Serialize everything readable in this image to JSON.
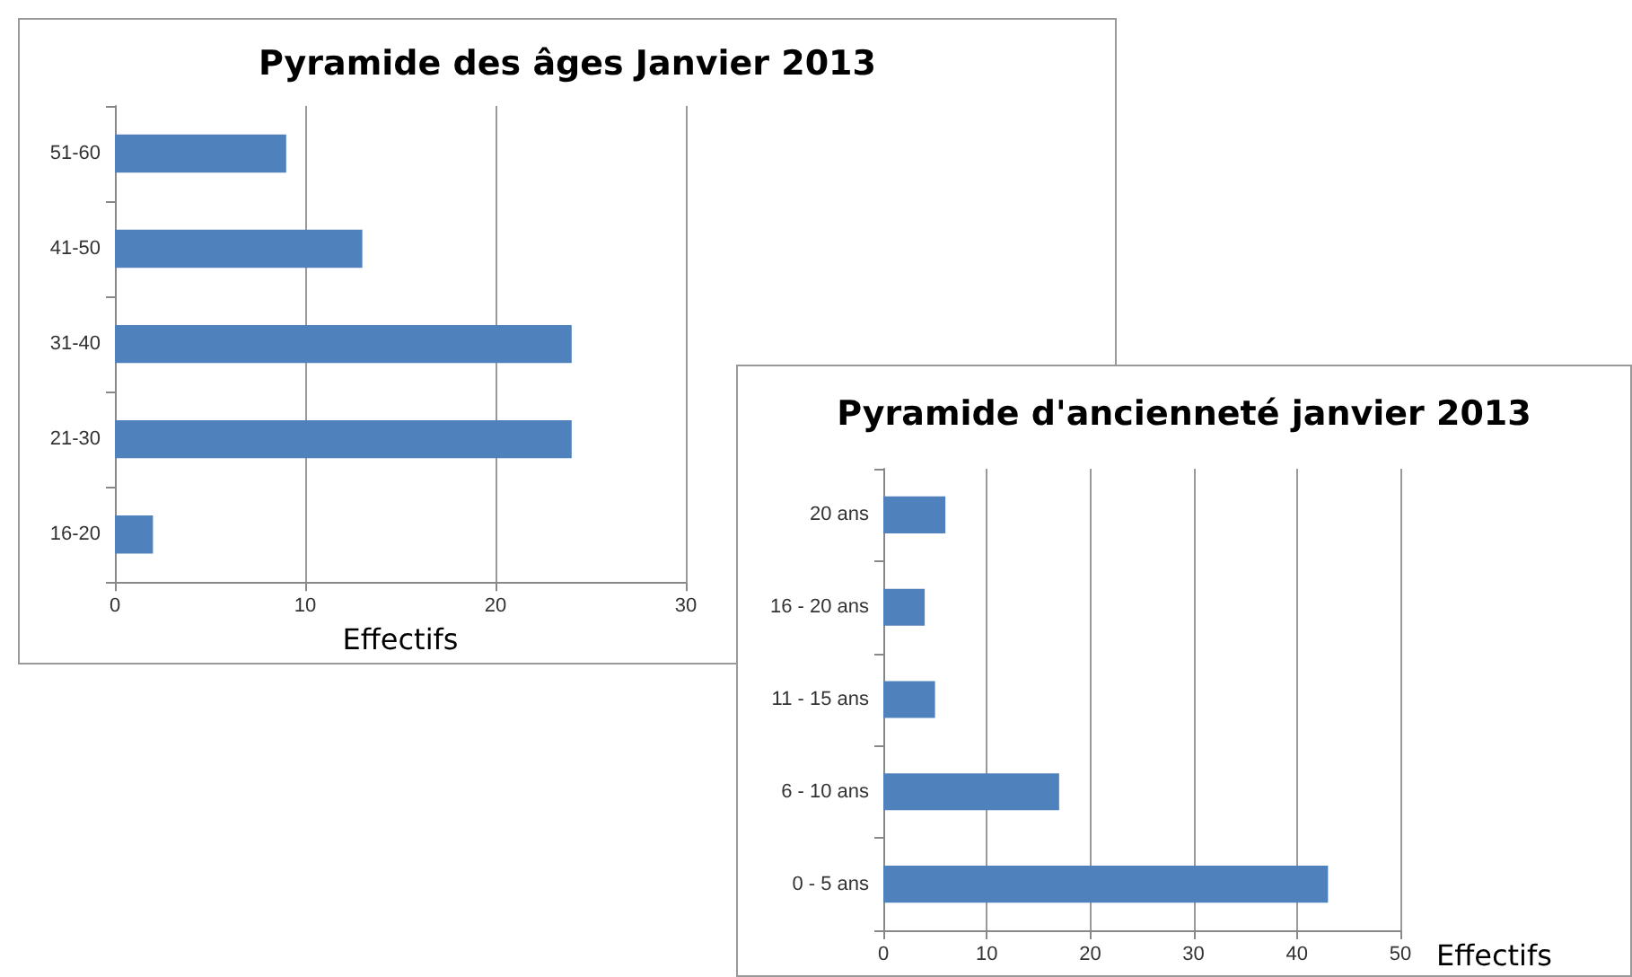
{
  "chart_data": [
    {
      "type": "bar",
      "title": "Pyramide des âges Janvier 2013",
      "orientation": "horizontal",
      "categories": [
        "51-60",
        "41-50",
        "31-40",
        "21-30",
        "16-20"
      ],
      "values": [
        9,
        13,
        24,
        24,
        2
      ],
      "color": "#4f81bd",
      "xlim": [
        0,
        30
      ],
      "xticks": [
        0,
        10,
        20,
        30
      ],
      "xlabel": "Effectifs",
      "grid": "x"
    },
    {
      "type": "bar",
      "title": "Pyramide d'ancienneté janvier 2013",
      "orientation": "horizontal",
      "categories": [
        "20 ans",
        "16 - 20 ans",
        "11 - 15 ans",
        "6 - 10 ans",
        "0 - 5 ans"
      ],
      "values": [
        6,
        4,
        5,
        17,
        43
      ],
      "color": "#4f81bd",
      "xlim": [
        0,
        50
      ],
      "xticks": [
        0,
        10,
        20,
        30,
        40,
        50
      ],
      "xlabel": "Effectifs",
      "grid": "x"
    }
  ]
}
